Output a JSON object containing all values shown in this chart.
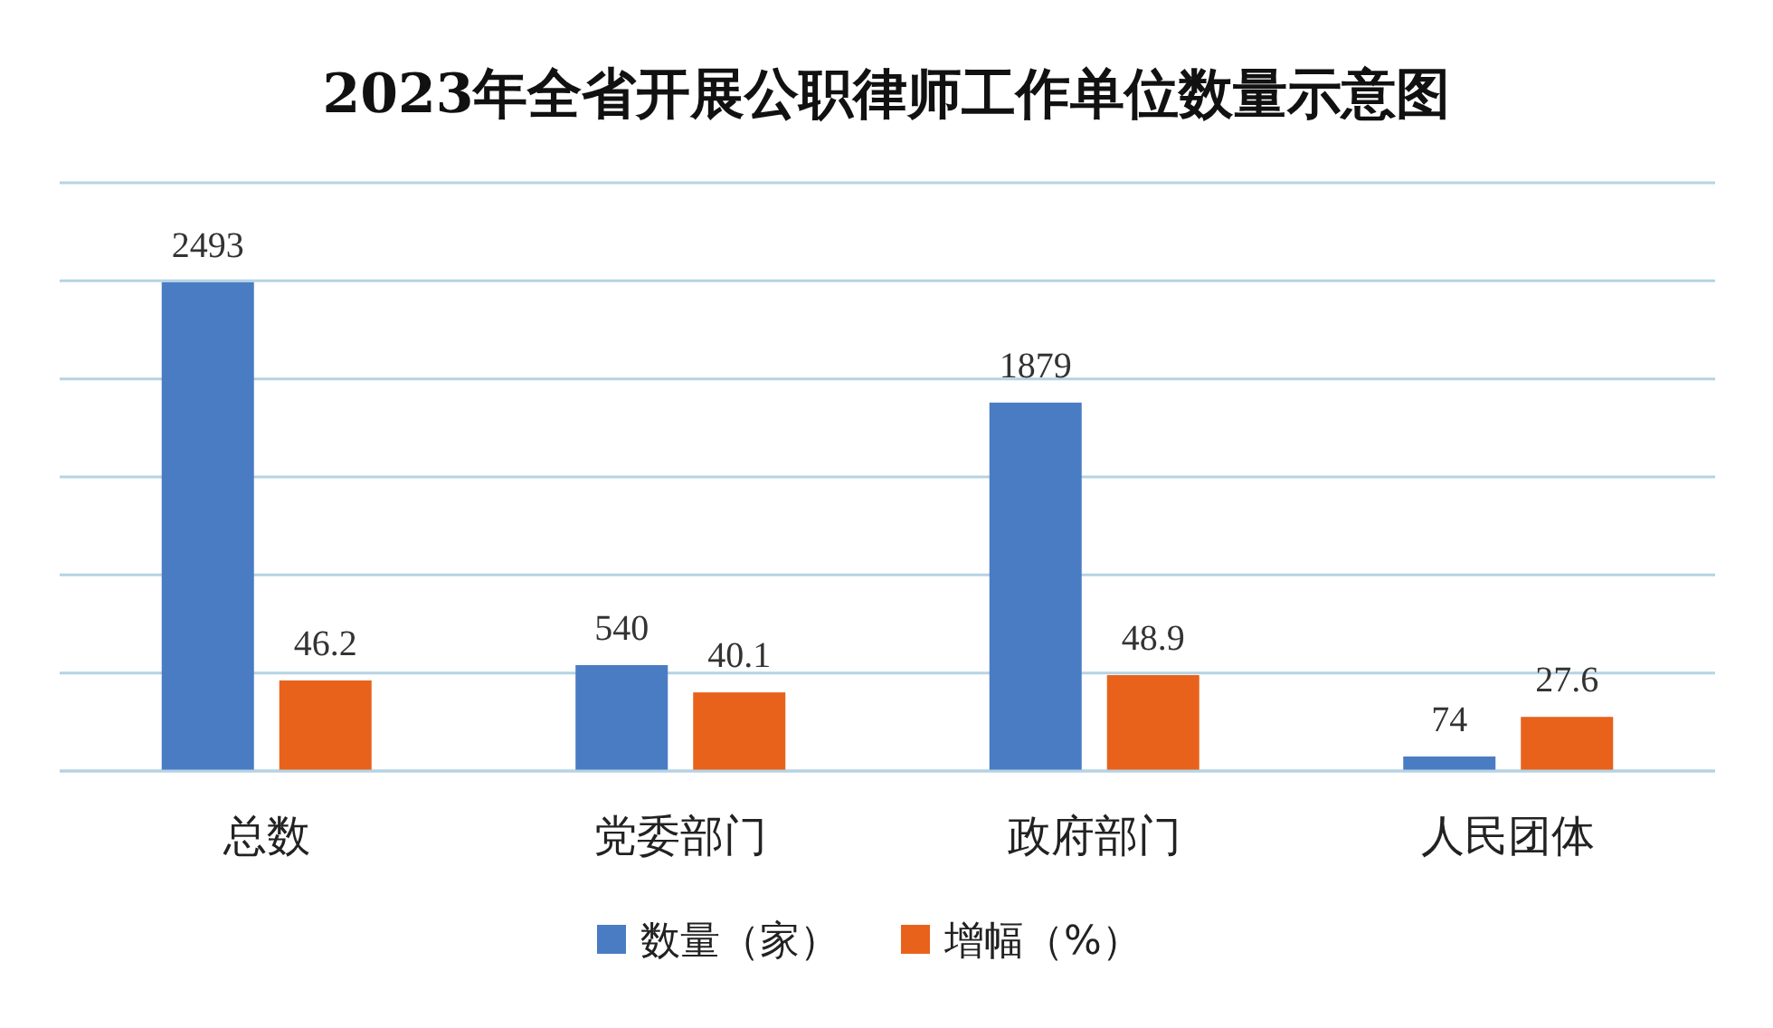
{
  "chart_data": {
    "type": "bar",
    "title": "2023年全省开展公职律师工作单位数量示意图",
    "categories": [
      "总数",
      "党委部门",
      "政府部门",
      "人民团体"
    ],
    "series": [
      {
        "name": "数量（家）",
        "color": "#4a7cc4",
        "values": [
          2493,
          540,
          1879,
          74
        ]
      },
      {
        "name": "增幅（%）",
        "color": "#e8621c",
        "values": [
          46.2,
          40.1,
          48.9,
          27.6
        ],
        "axis": "y2"
      }
    ],
    "ylim": [
      0,
      3000
    ],
    "yticks": [
      {
        "value": 0,
        "label": null
      },
      {
        "value": 500,
        "label": null
      },
      {
        "value": 1000,
        "label": null
      },
      {
        "value": 1500,
        "label": null
      },
      {
        "value": 2000,
        "label": null
      },
      {
        "value": 2500,
        "label": null
      },
      {
        "value": 3000,
        "label": null
      }
    ],
    "y2lim": [
      0,
      300
    ],
    "data_labels": true,
    "grid": "y",
    "legend": "bottom"
  }
}
